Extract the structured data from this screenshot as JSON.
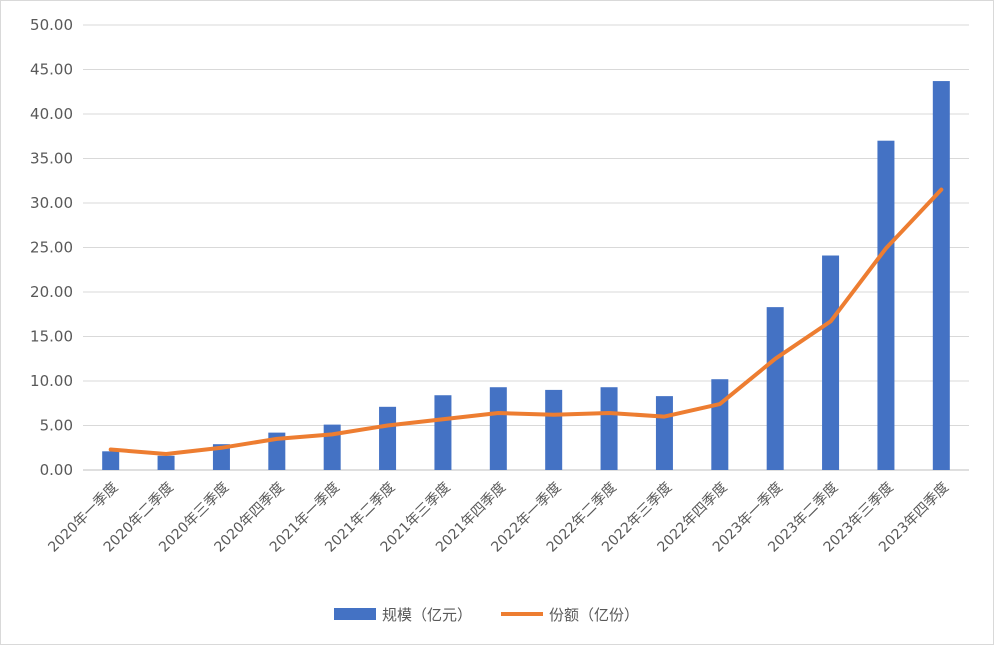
{
  "chart_data": {
    "type": "bar",
    "categories": [
      "2020年一季度",
      "2020年二季度",
      "2020年三季度",
      "2020年四季度",
      "2021年一季度",
      "2021年二季度",
      "2021年三季度",
      "2021年四季度",
      "2022年一季度",
      "2022年二季度",
      "2022年三季度",
      "2022年四季度",
      "2023年一季度",
      "2023年二季度",
      "2023年三季度",
      "2023年四季度"
    ],
    "series": [
      {
        "name": "规模（亿元）",
        "type": "bar",
        "color": "#4472C4",
        "values": [
          2.1,
          1.6,
          2.9,
          4.2,
          5.1,
          7.1,
          8.4,
          9.3,
          9.0,
          9.3,
          8.3,
          10.2,
          18.3,
          24.1,
          37.0,
          43.7
        ]
      },
      {
        "name": "份额（亿份）",
        "type": "line",
        "color": "#ED7D31",
        "values": [
          2.3,
          1.8,
          2.5,
          3.5,
          4.0,
          5.0,
          5.7,
          6.4,
          6.2,
          6.4,
          6.0,
          7.4,
          12.5,
          16.7,
          24.9,
          31.5
        ]
      }
    ],
    "yticks": [
      "0.00",
      "5.00",
      "10.00",
      "15.00",
      "20.00",
      "25.00",
      "30.00",
      "35.00",
      "40.00",
      "45.00",
      "50.00"
    ],
    "ylim": [
      0,
      50
    ],
    "grid": true,
    "legend": "bottom"
  }
}
